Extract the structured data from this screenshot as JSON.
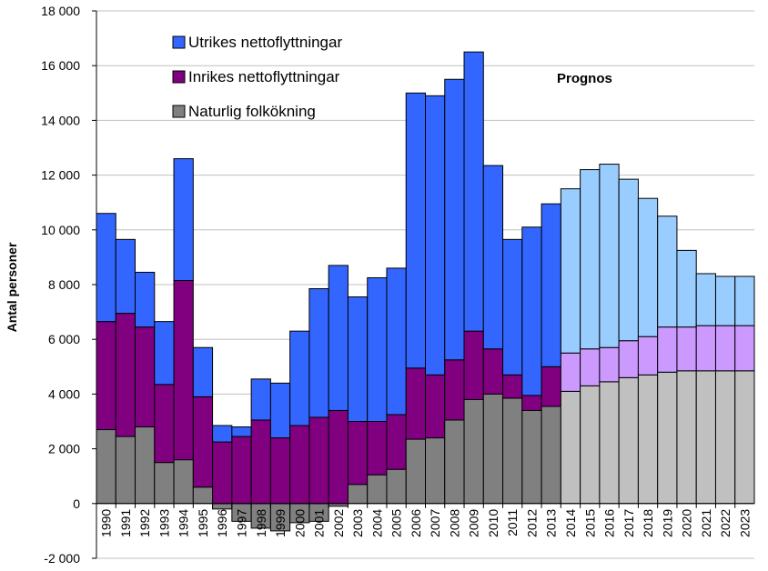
{
  "chart_data": {
    "type": "bar",
    "stacked": true,
    "categories": [
      "1990",
      "1991",
      "1992",
      "1993",
      "1994",
      "1995",
      "1996",
      "1997",
      "1998",
      "1999",
      "2000",
      "2001",
      "2002",
      "2003",
      "2004",
      "2005",
      "2006",
      "2007",
      "2008",
      "2009",
      "2010",
      "2011",
      "2012",
      "2013",
      "2014",
      "2015",
      "2016",
      "2017",
      "2018",
      "2019",
      "2020",
      "2021",
      "2022",
      "2023"
    ],
    "forecast_start": "2014",
    "ylabel": "Antal personer",
    "ylim": [
      -2000,
      18000
    ],
    "yticks": [
      -2000,
      0,
      2000,
      4000,
      6000,
      8000,
      10000,
      12000,
      14000,
      16000,
      18000
    ],
    "ytick_labels": [
      "-2 000",
      "0",
      "2 000",
      "4 000",
      "6 000",
      "8 000",
      "10 000",
      "12 000",
      "14 000",
      "16 000",
      "18 000"
    ],
    "grid": "horizontal",
    "legend_position": "top-left",
    "annotation": "Prognos",
    "series": [
      {
        "name": "Naturlig folkökning",
        "values": [
          2700,
          2450,
          2800,
          1500,
          1600,
          600,
          -200,
          -650,
          -900,
          -1000,
          -700,
          -650,
          -100,
          700,
          1050,
          1250,
          2350,
          2400,
          3050,
          3800,
          4000,
          3850,
          3400,
          3550,
          4100,
          4300,
          4450,
          4600,
          4700,
          4800,
          4850,
          4850,
          4850,
          4850
        ],
        "color": "#808080",
        "forecast_color": "#C0C0C0"
      },
      {
        "name": "Inrikes nettoflyttningar",
        "values": [
          3950,
          4500,
          3650,
          2850,
          6550,
          3300,
          2250,
          2450,
          3050,
          2400,
          2850,
          3150,
          3400,
          2300,
          1950,
          2000,
          2600,
          2300,
          2200,
          2500,
          1650,
          850,
          550,
          1450,
          1400,
          1350,
          1250,
          1350,
          1400,
          1650,
          1600,
          1650,
          1650,
          1650
        ],
        "color": "#800080",
        "forecast_color": "#CC99FF"
      },
      {
        "name": "Utrikes nettoflyttningar",
        "values": [
          3950,
          2700,
          2000,
          2300,
          4450,
          1800,
          600,
          350,
          1500,
          2000,
          3450,
          4700,
          5300,
          4550,
          5250,
          5350,
          10050,
          10200,
          10250,
          10200,
          6700,
          4950,
          6150,
          5950,
          6000,
          6550,
          6700,
          5900,
          5050,
          4050,
          2800,
          1900,
          1800,
          1800
        ],
        "color": "#3366FF",
        "forecast_color": "#99CCFF"
      }
    ]
  },
  "colors": {
    "border": "#000000",
    "grid": "#C0C0C0"
  }
}
